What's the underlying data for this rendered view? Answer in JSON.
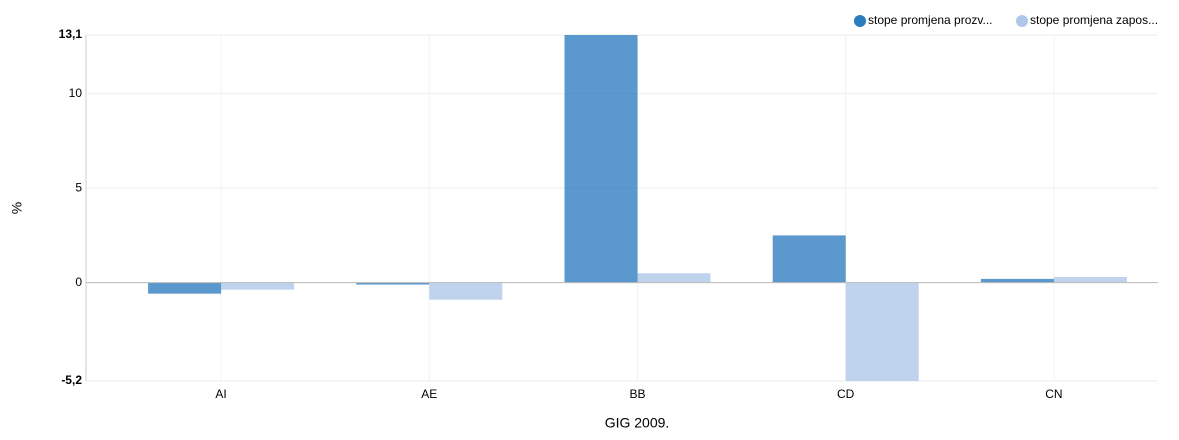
{
  "chart_data": {
    "type": "bar",
    "categories": [
      "AI",
      "AE",
      "BB",
      "CD",
      "CN"
    ],
    "series": [
      {
        "name": "stope promjena prozv...",
        "color": "#2b7bbf",
        "values": [
          -0.58,
          -0.1,
          13.1,
          2.5,
          0.2
        ]
      },
      {
        "name": "stope promjena zapos...",
        "color": "#aec7e8",
        "values": [
          -0.37,
          -0.9,
          0.5,
          -5.2,
          0.3
        ]
      }
    ],
    "ylim": [
      -5.2,
      13.1
    ],
    "yticks": [
      {
        "value": -5.2,
        "label": "-5,2"
      },
      0,
      5,
      10,
      {
        "value": 13.1,
        "label": "13,1"
      }
    ],
    "ylabel": "%",
    "xlabel": "GIG 2009.",
    "grid": true,
    "legend": "top-right"
  }
}
